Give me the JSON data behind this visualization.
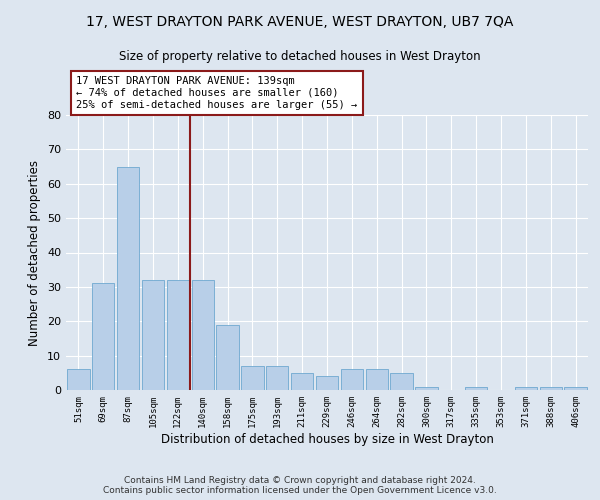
{
  "title": "17, WEST DRAYTON PARK AVENUE, WEST DRAYTON, UB7 7QA",
  "subtitle": "Size of property relative to detached houses in West Drayton",
  "xlabel": "Distribution of detached houses by size in West Drayton",
  "ylabel": "Number of detached properties",
  "categories": [
    "51sqm",
    "69sqm",
    "87sqm",
    "105sqm",
    "122sqm",
    "140sqm",
    "158sqm",
    "175sqm",
    "193sqm",
    "211sqm",
    "229sqm",
    "246sqm",
    "264sqm",
    "282sqm",
    "300sqm",
    "317sqm",
    "335sqm",
    "353sqm",
    "371sqm",
    "388sqm",
    "406sqm"
  ],
  "values": [
    6,
    31,
    65,
    32,
    32,
    32,
    19,
    7,
    7,
    5,
    4,
    6,
    6,
    5,
    1,
    0,
    1,
    0,
    1,
    1,
    1
  ],
  "bar_color": "#b8cfe8",
  "bar_edge_color": "#6fa8d0",
  "property_line_index": 5,
  "property_line_color": "#8b1a1a",
  "annotation_text": "17 WEST DRAYTON PARK AVENUE: 139sqm\n← 74% of detached houses are smaller (160)\n25% of semi-detached houses are larger (55) →",
  "annotation_box_color": "#ffffff",
  "annotation_box_edge_color": "#8b1a1a",
  "ylim": [
    0,
    80
  ],
  "yticks": [
    0,
    10,
    20,
    30,
    40,
    50,
    60,
    70,
    80
  ],
  "background_color": "#dde6f0",
  "grid_color": "#ffffff",
  "footer": "Contains HM Land Registry data © Crown copyright and database right 2024.\nContains public sector information licensed under the Open Government Licence v3.0.",
  "title_fontsize": 10,
  "subtitle_fontsize": 8.5,
  "xlabel_fontsize": 8.5,
  "ylabel_fontsize": 8.5,
  "footer_fontsize": 6.5
}
